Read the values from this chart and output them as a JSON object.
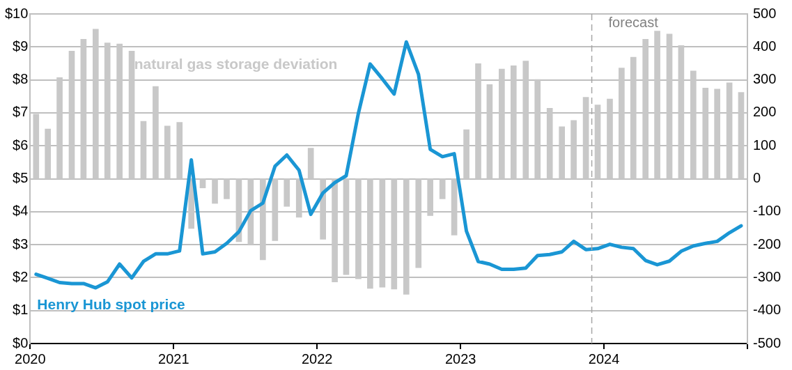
{
  "chart_data": {
    "type": "bar",
    "x": [
      "2020-01-16",
      "2020-02-15",
      "2020-03-16",
      "2020-04-16",
      "2020-05-16",
      "2020-06-16",
      "2020-07-16",
      "2020-08-16",
      "2020-09-16",
      "2020-10-16",
      "2020-11-16",
      "2020-12-16",
      "2021-01-16",
      "2021-02-15",
      "2021-03-16",
      "2021-04-16",
      "2021-05-16",
      "2021-06-16",
      "2021-07-16",
      "2021-08-16",
      "2021-09-16",
      "2021-10-16",
      "2021-11-16",
      "2021-12-16",
      "2022-01-16",
      "2022-02-15",
      "2022-03-16",
      "2022-04-16",
      "2022-05-16",
      "2022-06-16",
      "2022-07-16",
      "2022-08-16",
      "2022-09-16",
      "2022-10-16",
      "2022-11-16",
      "2022-12-16",
      "2023-01-16",
      "2023-02-15",
      "2023-03-16",
      "2023-04-16",
      "2023-05-16",
      "2023-06-16",
      "2023-07-16",
      "2023-08-16",
      "2023-09-16",
      "2023-10-16",
      "2023-11-16",
      "2023-12-16",
      "2024-01-16",
      "2024-02-15",
      "2024-03-16",
      "2024-04-16",
      "2024-05-16",
      "2024-06-16",
      "2024-07-16",
      "2024-08-16",
      "2024-09-16",
      "2024-10-16",
      "2024-11-16",
      "2024-12-16"
    ],
    "series": [
      {
        "name": "natural gas storage deviation",
        "axis": "y2",
        "color": "#c8c8c8",
        "values": [
          196,
          151,
          307,
          387,
          423,
          454,
          412,
          409,
          387,
          174,
          280,
          160,
          171,
          -151,
          -28,
          -75,
          -61,
          -191,
          -199,
          -246,
          -188,
          -84,
          -117,
          93,
          -184,
          -313,
          -291,
          -304,
          -333,
          -329,
          -335,
          -351,
          -270,
          -112,
          -61,
          -171,
          149,
          349,
          286,
          333,
          343,
          357,
          301,
          214,
          158,
          177,
          247,
          224,
          242,
          336,
          369,
          423,
          448,
          439,
          404,
          327,
          275,
          272,
          291,
          262
        ]
      },
      {
        "name": "Henry Hub spot price",
        "type": "line",
        "axis": "y",
        "color": "#1a96d4",
        "values": [
          2.1,
          1.98,
          1.85,
          1.82,
          1.82,
          1.69,
          1.87,
          2.41,
          1.99,
          2.49,
          2.72,
          2.72,
          2.81,
          5.57,
          2.72,
          2.78,
          3.04,
          3.39,
          4.03,
          4.26,
          5.38,
          5.72,
          5.26,
          3.92,
          4.57,
          4.88,
          5.09,
          6.98,
          8.48,
          8.03,
          7.57,
          9.15,
          8.17,
          5.89,
          5.67,
          5.76,
          3.41,
          2.49,
          2.41,
          2.25,
          2.25,
          2.29,
          2.67,
          2.7,
          2.78,
          3.1,
          2.85,
          2.88,
          3.01,
          2.92,
          2.88,
          2.52,
          2.39,
          2.5,
          2.8,
          2.96,
          3.04,
          3.1,
          3.36,
          3.57
        ]
      }
    ],
    "xlim": [
      "2020",
      "2025"
    ],
    "xticks": [
      {
        "value": "2020",
        "label": "2020"
      },
      {
        "value": "2021",
        "label": "2021"
      },
      {
        "value": "2022",
        "label": "2022"
      },
      {
        "value": "2023",
        "label": "2023"
      },
      {
        "value": "2024",
        "label": "2024"
      },
      {
        "value": "2025",
        "label": null
      }
    ],
    "ylim": [
      0,
      10
    ],
    "yticks": [
      {
        "value": 0,
        "label": "$0"
      },
      {
        "value": 1,
        "label": "$1"
      },
      {
        "value": 2,
        "label": "$2"
      },
      {
        "value": 3,
        "label": "$3"
      },
      {
        "value": 4,
        "label": "$4"
      },
      {
        "value": 5,
        "label": "$5"
      },
      {
        "value": 6,
        "label": "$6"
      },
      {
        "value": 7,
        "label": "$7"
      },
      {
        "value": 8,
        "label": "$8"
      },
      {
        "value": 9,
        "label": "$9"
      },
      {
        "value": 10,
        "label": "$10"
      }
    ],
    "y2lim": [
      -500,
      500
    ],
    "y2ticks": [
      -500,
      -400,
      -300,
      -200,
      -100,
      0,
      100,
      200,
      300,
      400,
      500
    ],
    "ref_lines": [
      {
        "axis": "x",
        "value": "2023-12",
        "label": "forecast",
        "color": "#a6a6a6",
        "line_style": "dashed"
      }
    ],
    "grid": "y",
    "legend": false
  }
}
